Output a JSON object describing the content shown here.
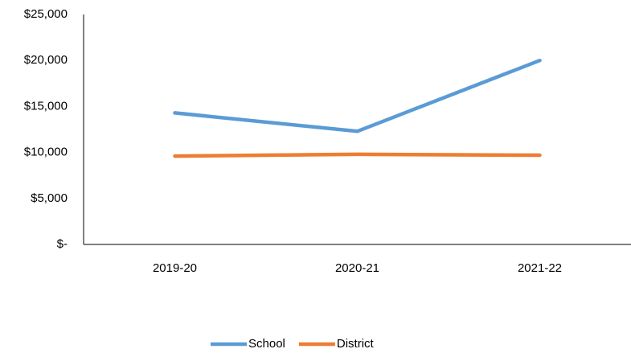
{
  "chart_data": {
    "type": "line",
    "categories": [
      "2019-20",
      "2020-21",
      "2021-22"
    ],
    "series": [
      {
        "name": "School",
        "color": "#5b9bd5",
        "values": [
          14300,
          12300,
          20000
        ]
      },
      {
        "name": "District",
        "color": "#ed7d31",
        "values": [
          9600,
          9800,
          9700
        ]
      }
    ],
    "ylim": [
      0,
      25000
    ],
    "yticks": [
      {
        "value": 0,
        "label": "$-"
      },
      {
        "value": 5000,
        "label": "$5,000"
      },
      {
        "value": 10000,
        "label": "$10,000"
      },
      {
        "value": 15000,
        "label": "$15,000"
      },
      {
        "value": 20000,
        "label": "$20,000"
      },
      {
        "value": 25000,
        "label": "$25,000"
      }
    ],
    "grid": false,
    "legend": "bottom"
  }
}
